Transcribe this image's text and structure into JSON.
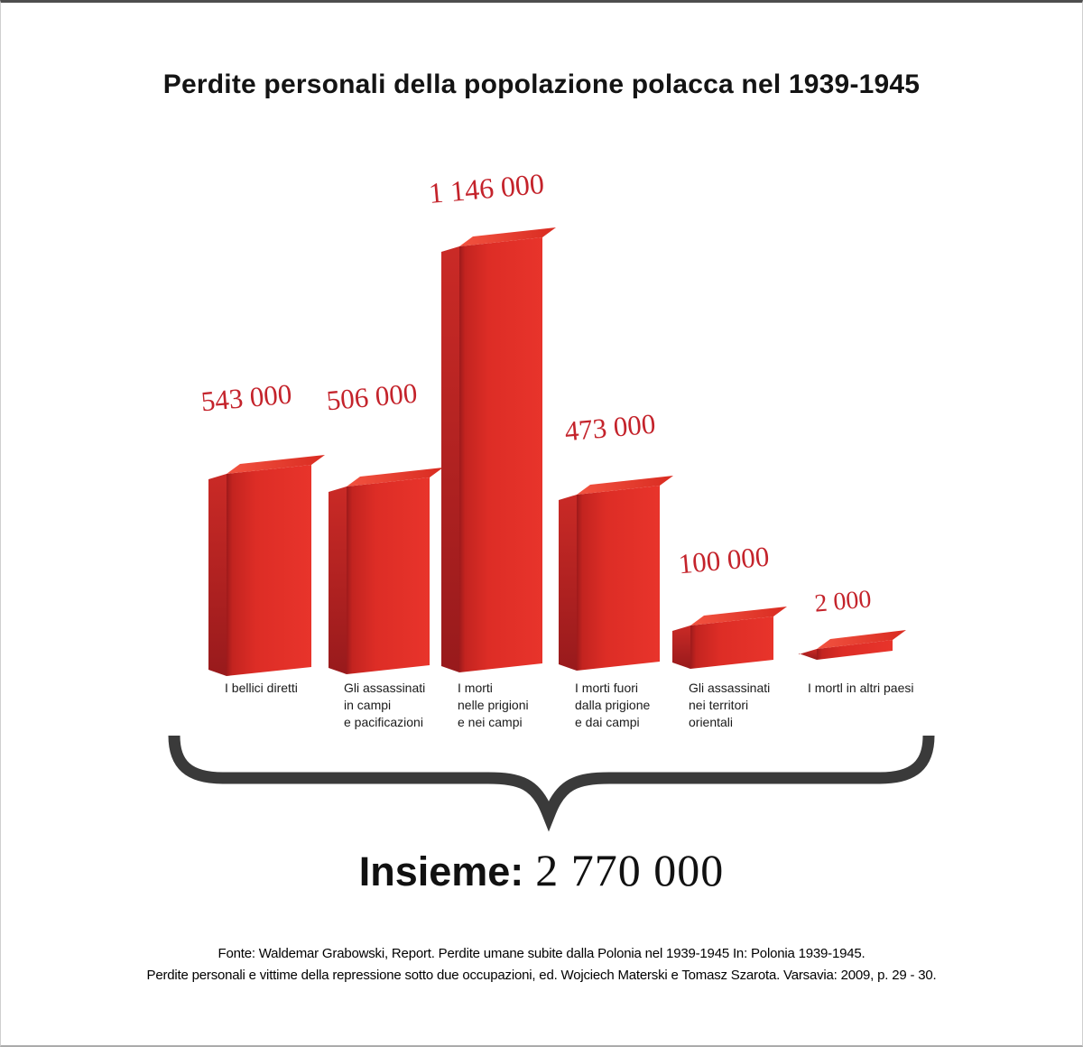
{
  "chart_data": {
    "type": "bar",
    "title": "Perdite personali della popolazione polacca nel 1939-1945",
    "categories": [
      "I bellici diretti",
      "Gli assassinati in campi e pacificazioni",
      "I morti nelle prigioni e nei campi",
      "I morti fuori dalla prigione e dai campi",
      "Gli assassinati nei territori orientali",
      "I mortl in altri paesi"
    ],
    "categories_lines": [
      [
        "I bellici diretti"
      ],
      [
        "Gli assassinati",
        "in campi",
        "e pacificazioni"
      ],
      [
        "I morti",
        "nelle prigioni",
        "e nei campi"
      ],
      [
        "I morti fuori",
        "dalla prigione",
        "e dai campi"
      ],
      [
        "Gli assassinati",
        "nei territori",
        "orientali"
      ],
      [
        "I mortl in altri paesi"
      ]
    ],
    "values": [
      543000,
      506000,
      1146000,
      473000,
      100000,
      2000
    ],
    "value_labels": [
      "543 000",
      "506 000",
      "1 146 000",
      "473 000",
      "100 000",
      "2 000"
    ],
    "ylim": [
      0,
      1146000
    ],
    "grid": false,
    "legend": false,
    "total_label": "Insieme:",
    "total_value": "2 770 000",
    "total": 2770000
  },
  "source": {
    "line1": "Fonte: Waldemar Grabowski, Report. Perdite umane subite dalla Polonia nel 1939-1945 In: Polonia 1939-1945.",
    "line2": "Perdite personali e vittime della repressione sotto due occupazioni, ed. Wojciech Materski e Tomasz Szarota. Varsavia: 2009, p. 29 - 30."
  },
  "colors": {
    "bar_front": [
      "#9e1a1b",
      "#c32420",
      "#dd2d26",
      "#e8342b"
    ],
    "bar_side": [
      "#ca2a26",
      "#981a1c"
    ],
    "bar_top": [
      "#f25340",
      "#d92b21"
    ],
    "value_label": "#c4232b",
    "text": "#141414",
    "brace": "#3a3a3a",
    "background": "#ffffff"
  }
}
